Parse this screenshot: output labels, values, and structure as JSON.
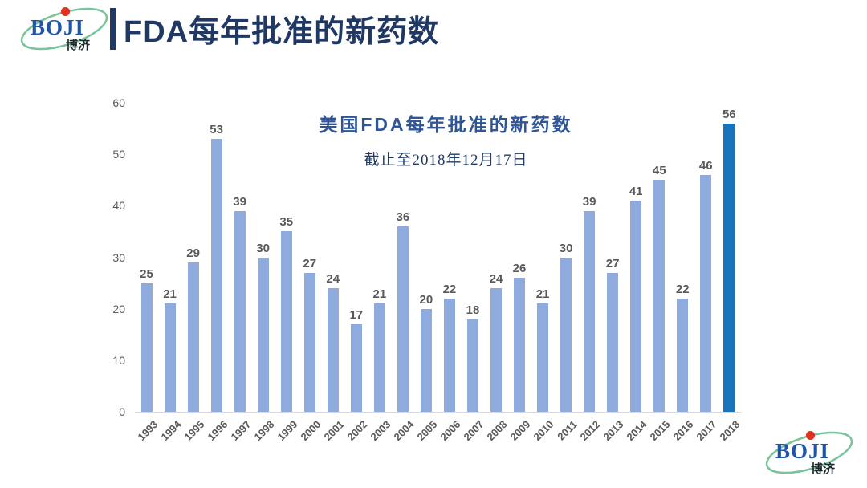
{
  "header": {
    "title": "FDA每年批准的新药数"
  },
  "logo": {
    "text": "BOJI",
    "sub": "博济"
  },
  "colors": {
    "navy": "#1F3864",
    "title-blue": "#2F5597",
    "label-gray": "#595959",
    "logo-blue": "#1F55A8",
    "logo-red": "#E03020",
    "logo-green": "#7CC29B"
  },
  "chart_data": {
    "type": "bar",
    "title": "美国FDA每年批准的新药数",
    "subtitle": "截止至2018年12月17日",
    "categories": [
      "1993",
      "1994",
      "1995",
      "1996",
      "1997",
      "1998",
      "1999",
      "2000",
      "2001",
      "2002",
      "2003",
      "2004",
      "2005",
      "2006",
      "2007",
      "2008",
      "2009",
      "2010",
      "2011",
      "2012",
      "2013",
      "2014",
      "2015",
      "2016",
      "2017",
      "2018"
    ],
    "values": [
      25,
      21,
      29,
      53,
      39,
      30,
      35,
      27,
      24,
      17,
      21,
      36,
      20,
      22,
      18,
      24,
      26,
      21,
      30,
      39,
      27,
      41,
      45,
      22,
      46,
      56
    ],
    "xlabel": "",
    "ylabel": "",
    "ylim": [
      0,
      60
    ],
    "yticks": [
      0,
      10,
      20,
      30,
      40,
      50,
      60
    ],
    "grid": false,
    "legend": false,
    "data_labels": true,
    "bar_color": "#8FAADC",
    "highlight_color": "#1673BC",
    "highlight_index": 25
  }
}
